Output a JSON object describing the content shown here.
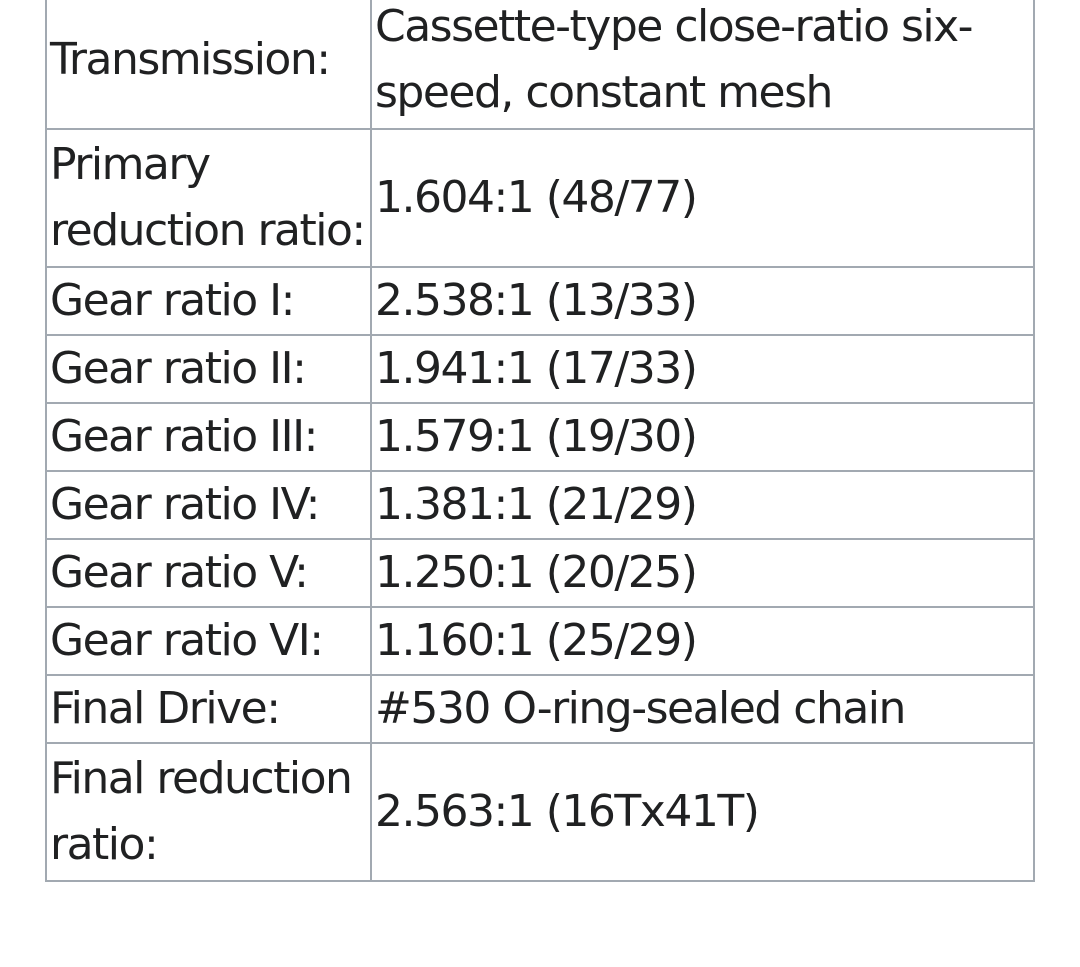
{
  "specs": {
    "rows": [
      {
        "label": "Transmission:",
        "value": "Cassette-type close-ratio six-speed, constant mesh"
      },
      {
        "label": "Primary reduction ratio:",
        "value": "1.604:1 (48/77)"
      },
      {
        "label": "Gear ratio I:",
        "value": "2.538:1 (13/33)"
      },
      {
        "label": "Gear ratio II:",
        "value": "1.941:1 (17/33)"
      },
      {
        "label": "Gear ratio III:",
        "value": "1.579:1 (19/30)"
      },
      {
        "label": "Gear ratio IV:",
        "value": "1.381:1 (21/29)"
      },
      {
        "label": "Gear ratio V:",
        "value": "1.250:1 (20/25)"
      },
      {
        "label": "Gear ratio VI:",
        "value": "1.160:1 (25/29)"
      },
      {
        "label": "Final Drive:",
        "value": "#530 O-ring-sealed chain"
      },
      {
        "label": "Final reduction ratio:",
        "value": "2.563:1 (16Tx41T)"
      }
    ]
  }
}
